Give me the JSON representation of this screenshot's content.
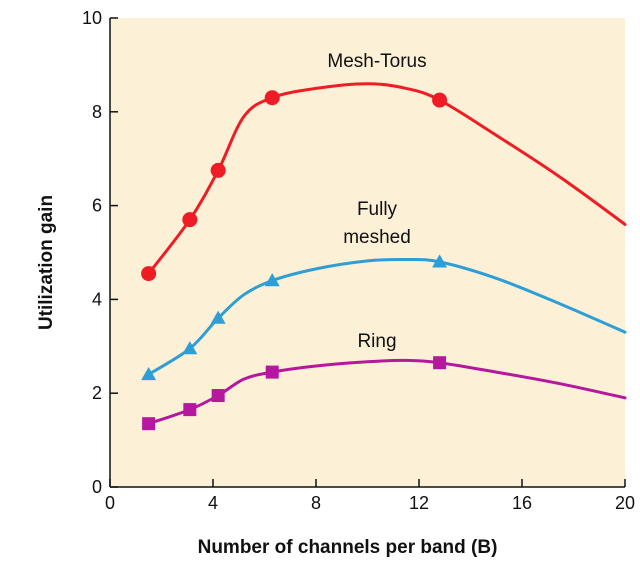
{
  "chart_data": {
    "type": "line",
    "title": "",
    "xlabel": "Number of channels per band (B)",
    "ylabel": "Utilization gain",
    "xlim": [
      0,
      20
    ],
    "ylim": [
      0,
      10
    ],
    "xticks": [
      "0",
      "4",
      "8",
      "12",
      "16",
      "20"
    ],
    "yticks": [
      "0",
      "2",
      "4",
      "6",
      "8",
      "10"
    ],
    "grid": false,
    "legend": "none",
    "plot_background": "#fcf0d6",
    "series": [
      {
        "name": "Mesh-Torus",
        "label_lines": [
          "Mesh-Torus"
        ],
        "color": "#ee1c24",
        "marker": "circle",
        "markers": [
          [
            1.5,
            4.55
          ],
          [
            3.1,
            5.7
          ],
          [
            4.2,
            6.75
          ],
          [
            6.3,
            8.3
          ],
          [
            12.8,
            8.25
          ]
        ],
        "curve": [
          [
            1.5,
            4.55
          ],
          [
            3.1,
            5.7
          ],
          [
            4.2,
            6.75
          ],
          [
            5.2,
            7.9
          ],
          [
            6.3,
            8.3
          ],
          [
            8,
            8.5
          ],
          [
            10,
            8.6
          ],
          [
            11.5,
            8.5
          ],
          [
            12.8,
            8.25
          ],
          [
            15,
            7.5
          ],
          [
            17.5,
            6.6
          ],
          [
            20,
            5.6
          ]
        ]
      },
      {
        "name": "Fully meshed",
        "label_lines": [
          "Fully",
          "meshed"
        ],
        "color": "#2e9ed6",
        "marker": "triangle",
        "markers": [
          [
            1.5,
            2.4
          ],
          [
            3.1,
            2.95
          ],
          [
            4.2,
            3.6
          ],
          [
            6.3,
            4.4
          ],
          [
            12.8,
            4.8
          ]
        ],
        "curve": [
          [
            1.5,
            2.4
          ],
          [
            3.1,
            2.95
          ],
          [
            4.2,
            3.6
          ],
          [
            5.2,
            4.1
          ],
          [
            6.3,
            4.4
          ],
          [
            8,
            4.65
          ],
          [
            10,
            4.82
          ],
          [
            11.5,
            4.85
          ],
          [
            12.8,
            4.8
          ],
          [
            15,
            4.45
          ],
          [
            17.5,
            3.9
          ],
          [
            20,
            3.3
          ]
        ]
      },
      {
        "name": "Ring",
        "label_lines": [
          "Ring"
        ],
        "color": "#b5179e",
        "marker": "square",
        "markers": [
          [
            1.5,
            1.35
          ],
          [
            3.1,
            1.65
          ],
          [
            4.2,
            1.95
          ],
          [
            6.3,
            2.45
          ],
          [
            12.8,
            2.65
          ]
        ],
        "curve": [
          [
            1.5,
            1.35
          ],
          [
            3.1,
            1.65
          ],
          [
            4.2,
            1.95
          ],
          [
            5.2,
            2.3
          ],
          [
            6.3,
            2.45
          ],
          [
            8,
            2.58
          ],
          [
            10,
            2.67
          ],
          [
            11.5,
            2.7
          ],
          [
            12.8,
            2.65
          ],
          [
            15,
            2.45
          ],
          [
            17.5,
            2.2
          ],
          [
            20,
            1.9
          ]
        ]
      }
    ]
  }
}
